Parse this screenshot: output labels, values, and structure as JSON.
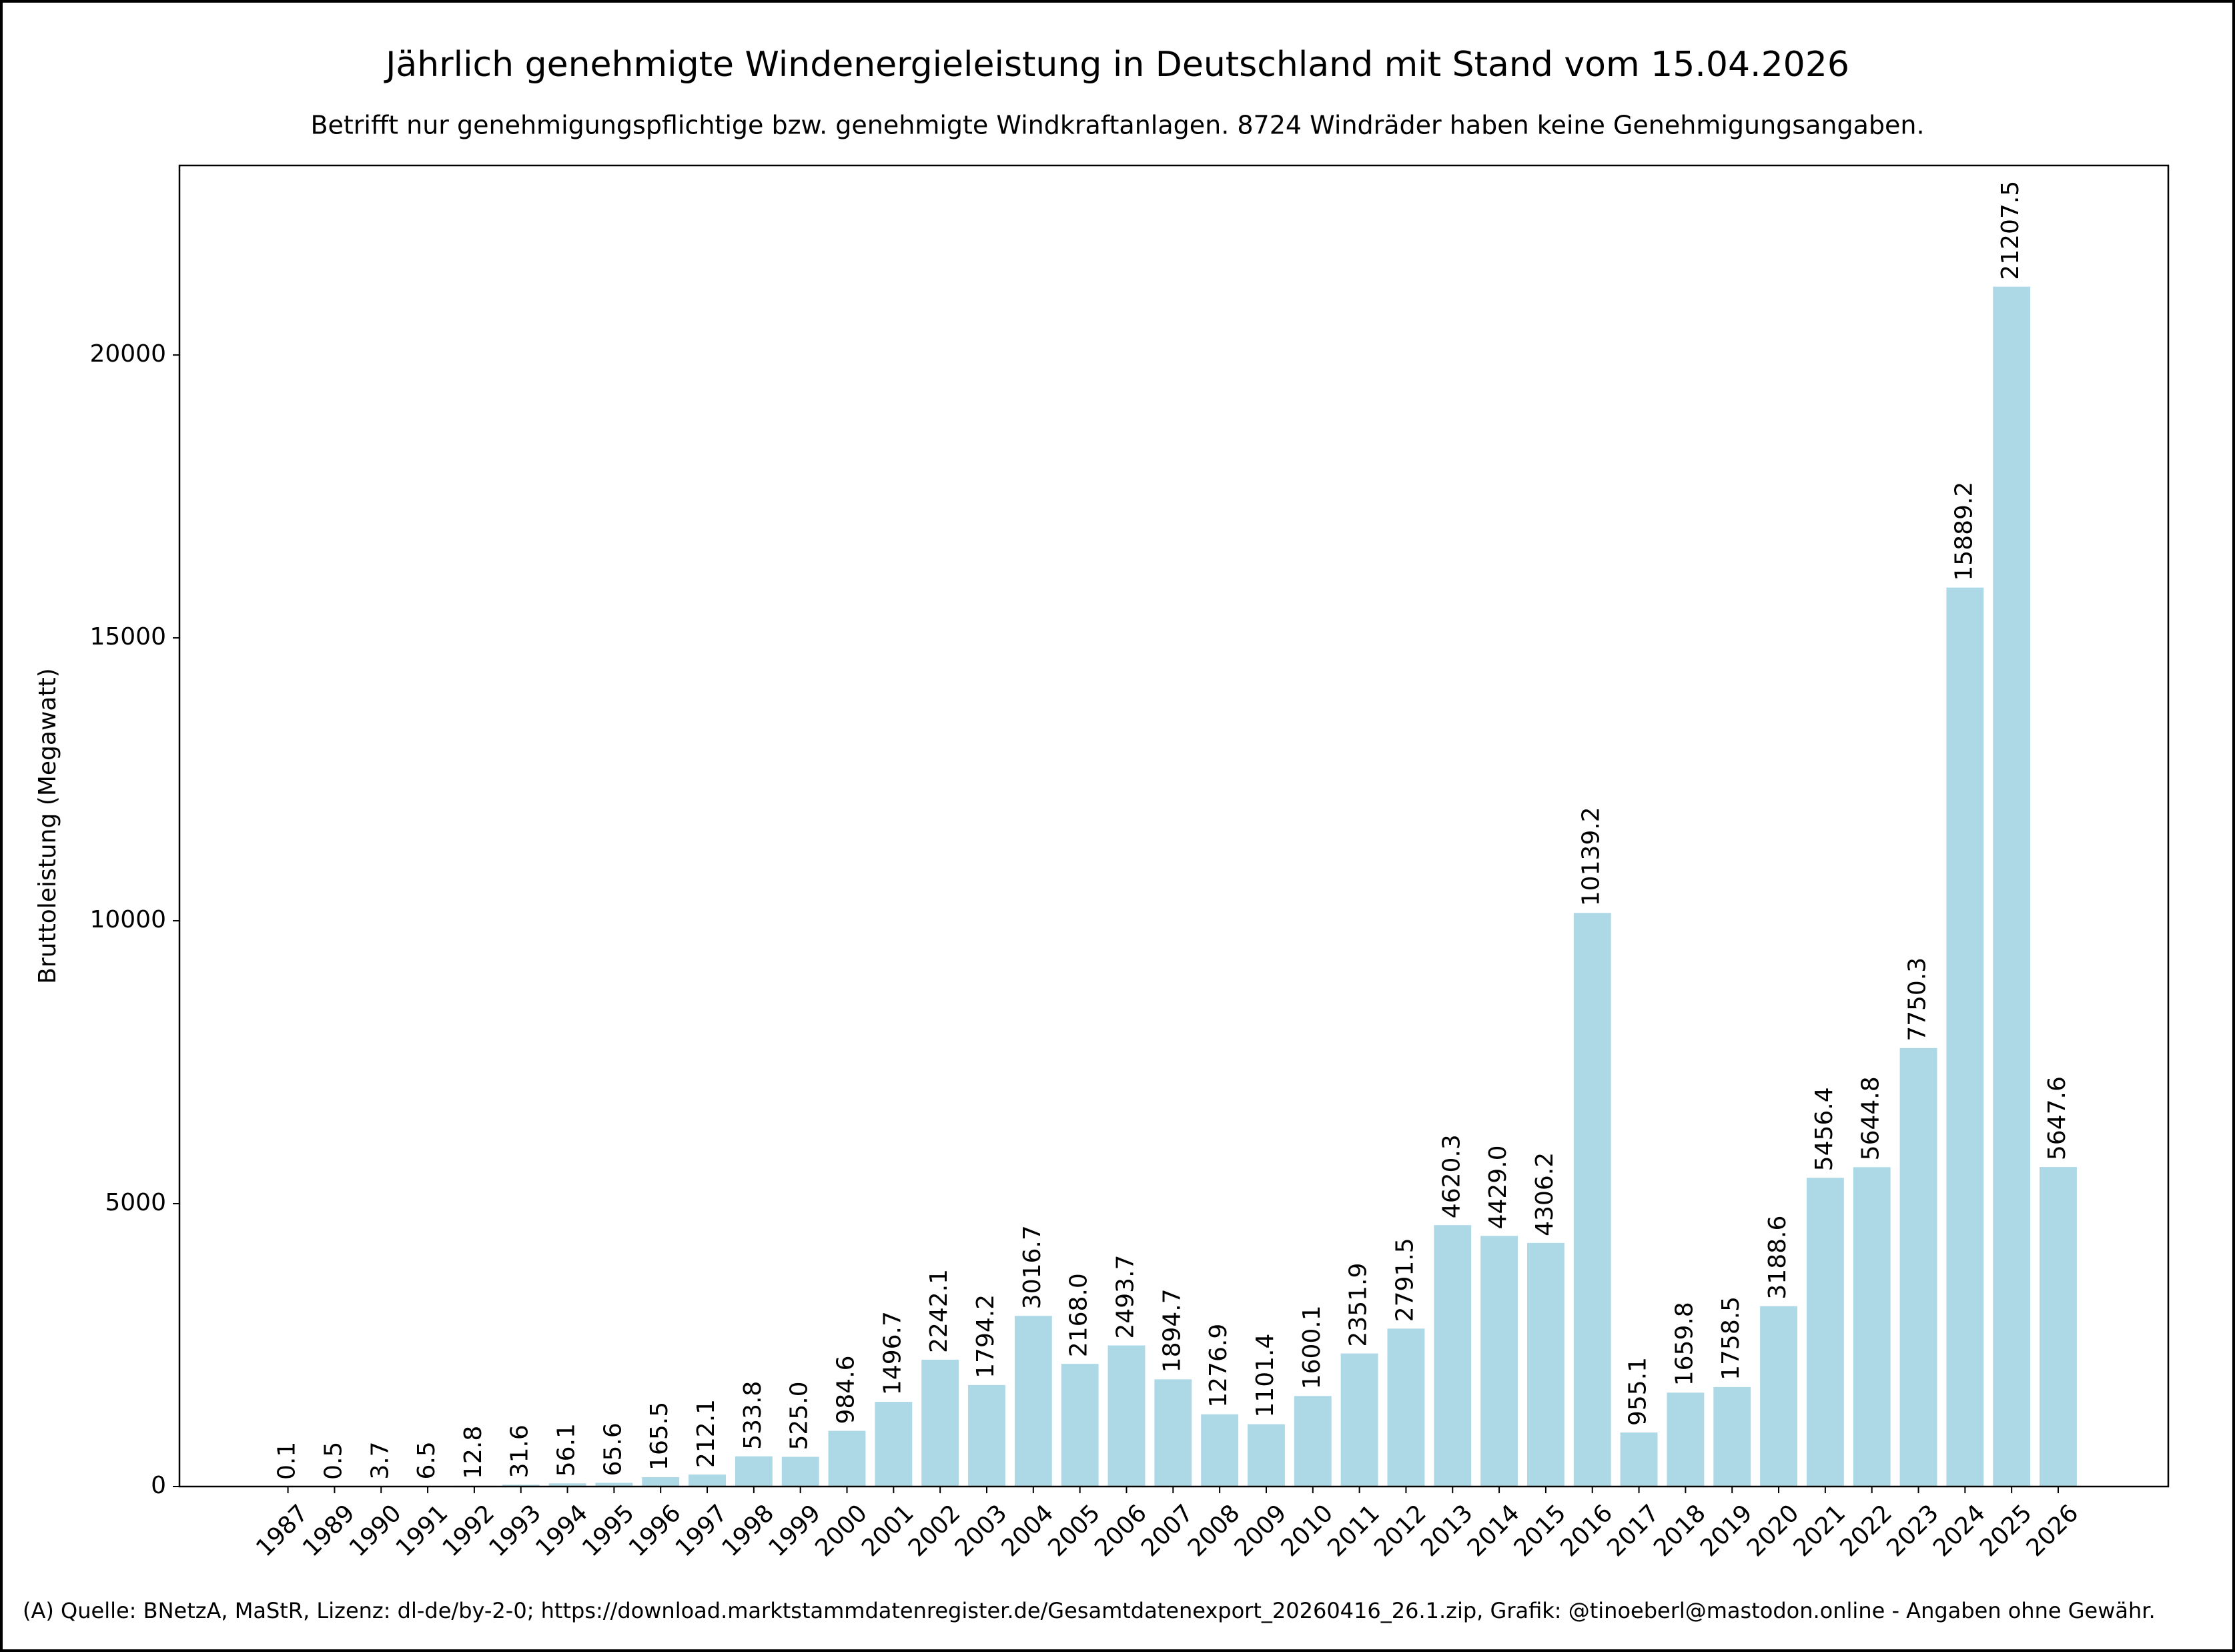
{
  "chart_data": {
    "type": "bar",
    "title": "Jährlich genehmigte Windenergieleistung in Deutschland mit Stand vom 15.04.2026",
    "subtitle": "Betrifft nur genehmigungspflichtige bzw. genehmigte Windkraftanlagen. 8724 Windräder haben keine Genehmigungsangaben.",
    "y_label": "Bruttoleistung (Megawatt)",
    "footer": "(A) Quelle: BNetzA, MaStR, Lizenz: dl-de/by-2-0; https://download.marktstammdatenregister.de/Gesamtdatenexport_20260416_26.1.zip, Grafik: @tinoeberl@mastodon.online - Angaben ohne Gewähr.",
    "categories": [
      "1987",
      "1989",
      "1990",
      "1991",
      "1992",
      "1993",
      "1994",
      "1995",
      "1996",
      "1997",
      "1998",
      "1999",
      "2000",
      "2001",
      "2002",
      "2003",
      "2004",
      "2005",
      "2006",
      "2007",
      "2008",
      "2009",
      "2010",
      "2011",
      "2012",
      "2013",
      "2014",
      "2015",
      "2016",
      "2017",
      "2018",
      "2019",
      "2020",
      "2021",
      "2022",
      "2023",
      "2024",
      "2025",
      "2026"
    ],
    "values": [
      0.1,
      0.5,
      3.7,
      6.5,
      12.8,
      31.6,
      56.1,
      65.6,
      165.5,
      212.1,
      533.8,
      525.0,
      984.6,
      1496.7,
      2242.1,
      1794.2,
      3016.7,
      2168.0,
      2493.7,
      1894.7,
      1276.9,
      1101.4,
      1600.1,
      2351.9,
      2791.5,
      4620.3,
      4429.0,
      4306.2,
      10139.2,
      955.1,
      1659.8,
      1758.5,
      3188.6,
      5456.4,
      5644.8,
      7750.3,
      15889.2,
      21207.5,
      5647.6
    ],
    "value_labels": [
      "0.1",
      "0.5",
      "3.7",
      "6.5",
      "12.8",
      "31.6",
      "56.1",
      "65.6",
      "165.5",
      "212.1",
      "533.8",
      "525.0",
      "984.6",
      "1496.7",
      "2242.1",
      "1794.2",
      "3016.7",
      "2168.0",
      "2493.7",
      "1894.7",
      "1276.9",
      "1101.4",
      "1600.1",
      "2351.9",
      "2791.5",
      "4620.3",
      "4429.0",
      "4306.2",
      "10139.2",
      "955.1",
      "1659.8",
      "1758.5",
      "3188.6",
      "5456.4",
      "5644.8",
      "7750.3",
      "15889.2",
      "21207.5",
      "5647.6"
    ],
    "color": "#add8e6",
    "ylim": [
      0,
      23350
    ],
    "yticks": [
      0,
      5000,
      10000,
      15000,
      20000
    ],
    "grid": false
  }
}
